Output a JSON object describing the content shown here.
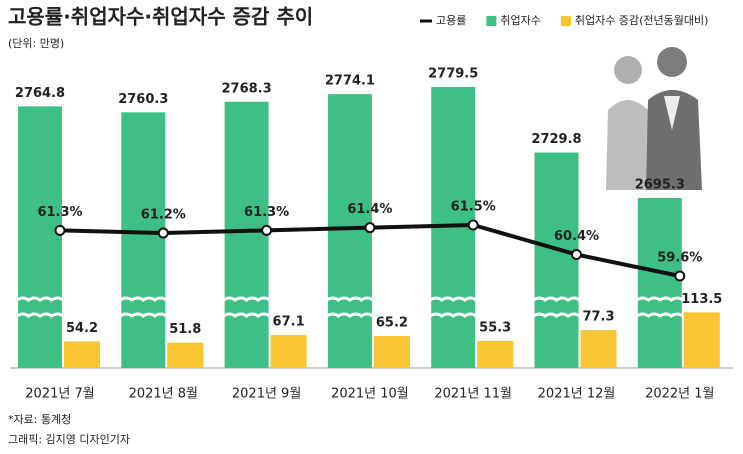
{
  "chart_data": {
    "type": "combo",
    "title": "고용률·취업자수·취업자수 증감 추이",
    "subtitle": "(단위: 만명)",
    "categories": [
      "2021년 7월",
      "2021년 8월",
      "2021년 9월",
      "2021년 10월",
      "2021년 11월",
      "2021년 12월",
      "2022년 1월"
    ],
    "series": [
      {
        "name": "고용률",
        "type": "line",
        "color": "#111111",
        "values": [
          61.3,
          61.2,
          61.3,
          61.4,
          61.5,
          60.4,
          59.6
        ],
        "value_labels": [
          "61.3%",
          "61.2%",
          "61.3%",
          "61.4%",
          "61.5%",
          "60.4%",
          "59.6%"
        ]
      },
      {
        "name": "취업자수",
        "type": "bar",
        "color": "#3dbf86",
        "values": [
          2764.8,
          2760.3,
          2768.3,
          2774.1,
          2779.5,
          2729.8,
          2695.3
        ]
      },
      {
        "name": "취업자수 증감(전년동월대비)",
        "type": "bar",
        "color": "#f7c531",
        "values": [
          54.2,
          51.8,
          67.1,
          65.2,
          55.3,
          77.3,
          113.5
        ]
      }
    ],
    "source": "*자료: 통계청",
    "credit": "그래픽: 김지영 디자인기자"
  }
}
